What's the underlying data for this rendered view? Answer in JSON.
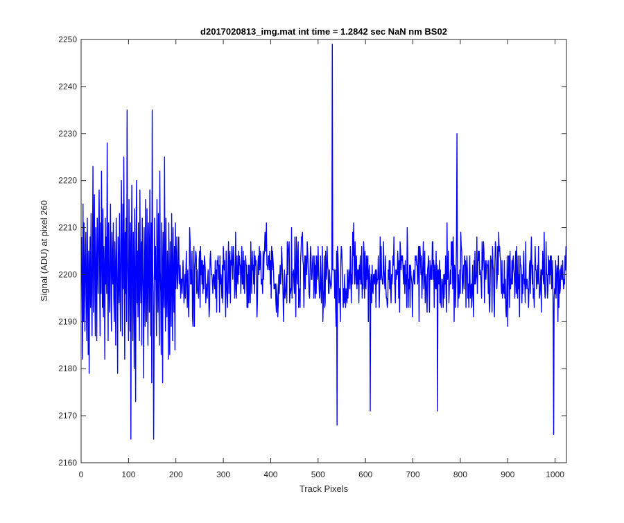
{
  "colors": {
    "series": "#0000ff",
    "axes": "#262626",
    "background": "#ffffff"
  },
  "chart_data": {
    "type": "line",
    "title": "d2017020813_img.mat int time = 1.2842 sec  NaN nm BS02",
    "xlabel": "Track Pixels",
    "ylabel": "Signal (ADU) at pixel 260",
    "xlim": [
      0,
      1024
    ],
    "ylim": [
      2160,
      2250
    ],
    "xticks": [
      0,
      100,
      200,
      300,
      400,
      500,
      600,
      700,
      800,
      900,
      1000
    ],
    "yticks": [
      2160,
      2170,
      2180,
      2190,
      2200,
      2210,
      2220,
      2230,
      2240,
      2250
    ],
    "xtick_labels": [
      "0",
      "100",
      "200",
      "300",
      "400",
      "500",
      "600",
      "700",
      "800",
      "900",
      "1000"
    ],
    "ytick_labels": [
      "2160",
      "2170",
      "2180",
      "2190",
      "2200",
      "2210",
      "2220",
      "2230",
      "2240",
      "2250"
    ],
    "grid": false,
    "legend": "none",
    "series": [
      {
        "x_start": 1,
        "x_step": 1,
        "mean_level": 2200,
        "noise_amplitude": 8,
        "values": [
          2208,
          2196,
          2182,
          2215,
          2190,
          2211,
          2201,
          2188,
          2204,
          2209,
          2195,
          2186,
          2212,
          2198,
          2183,
          2205,
          2179,
          2201,
          2208,
          2193,
          2213,
          2198,
          2187,
          2204,
          2223,
          2192,
          2207,
          2217,
          2196,
          2187,
          2210,
          2200,
          2186,
          2212,
          2203,
          2196,
          2209,
          2218,
          2202,
          2187,
          2211,
          2196,
          2222,
          2204,
          2193,
          2214,
          2191,
          2206,
          2200,
          2182,
          2212,
          2198,
          2208,
          2196,
          2228,
          2204,
          2186,
          2211,
          2197,
          2192,
          2205,
          2215,
          2196,
          2188,
          2209,
          2202,
          2198,
          2211,
          2195,
          2190,
          2207,
          2200,
          2185,
          2212,
          2204,
          2196,
          2179,
          2208,
          2201,
          2194,
          2213,
          2199,
          2188,
          2205,
          2220,
          2201,
          2187,
          2215,
          2197,
          2225,
          2204,
          2182,
          2209,
          2196,
          2212,
          2190,
          2235,
          2204,
          2198,
          2186,
          2216,
          2201,
          2188,
          2211,
          2165,
          2204,
          2219,
          2196,
          2186,
          2209,
          2200,
          2180,
          2214,
          2197,
          2173,
          2209,
          2220,
          2194,
          2205,
          2191,
          2211,
          2198,
          2186,
          2218,
          2200,
          2194,
          2207,
          2185,
          2212,
          2202,
          2196,
          2178,
          2210,
          2201,
          2189,
          2216,
          2199,
          2190,
          2214,
          2197,
          2185,
          2211,
          2205,
          2192,
          2218,
          2201,
          2187,
          2211,
          2177,
          2225,
          2201,
          2196,
          2209,
          2186,
          2212,
          2199,
          2206,
          2196,
          2187,
          2216,
          2200,
          2192,
          2213,
          2197,
          2185,
          2222,
          2201,
          2196,
          2183,
          2211,
          2201,
          2177,
          2209,
          2200,
          2193,
          2225,
          2199,
          2188,
          2212,
          2196,
          2191,
          2205,
          2200,
          2182,
          2211,
          2198,
          2183,
          2207,
          2196,
          2189,
          2213,
          2201,
          2186,
          2210,
          2199,
          2192,
          2206,
          2184,
          2211,
          2197
        ]
      }
    ],
    "notable_points": [
      {
        "x": 150,
        "y": 2235
      },
      {
        "x": 153,
        "y": 2165
      },
      {
        "x": 530,
        "y": 2249
      },
      {
        "x": 540,
        "y": 2168
      },
      {
        "x": 610,
        "y": 2171
      },
      {
        "x": 752,
        "y": 2171
      },
      {
        "x": 793,
        "y": 2230
      },
      {
        "x": 997,
        "y": 2166
      }
    ]
  }
}
